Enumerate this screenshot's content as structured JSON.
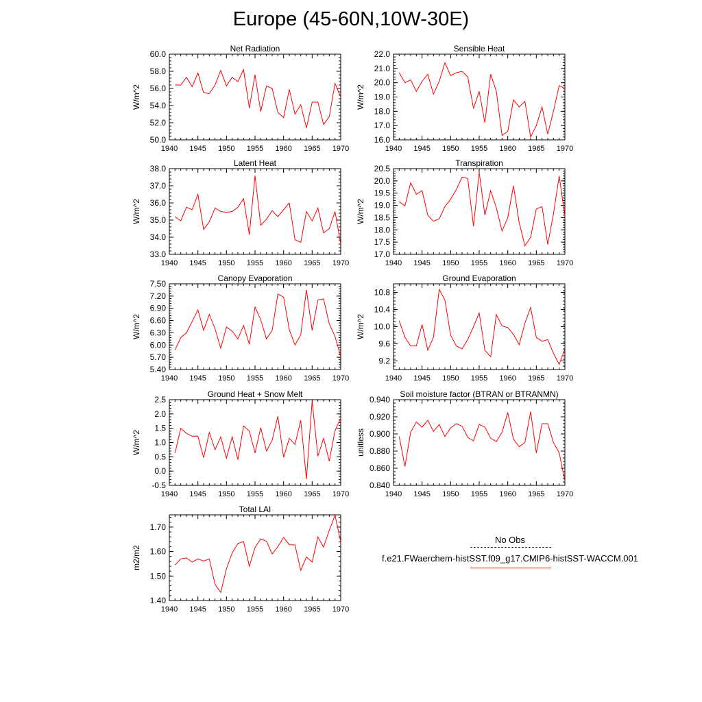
{
  "title": "Europe (45-60N,10W-30E)",
  "legend": {
    "obs_label": "No Obs",
    "model_label": "f.e21.FWaerchem-histSST.f09_g17.CMIP6-histSST-WACCM.001",
    "model_color": "#ff0000",
    "obs_color": "#3333aa"
  },
  "chart_data": [
    {
      "type": "line",
      "title": "Net Radiation",
      "ylabel": "W/m^2",
      "xlim": [
        1940,
        1970
      ],
      "ylim": [
        50,
        60
      ],
      "yticks": [
        "50.0",
        "52.0",
        "54.0",
        "56.0",
        "58.0",
        "60.0"
      ],
      "xticks": [
        "1940",
        "1945",
        "1950",
        "1955",
        "1960",
        "1965",
        "1970"
      ],
      "series": [
        {
          "x": [
            1941,
            1942,
            1943,
            1944,
            1945,
            1946,
            1947,
            1948,
            1949,
            1950,
            1951,
            1952,
            1953,
            1954,
            1955,
            1956,
            1957,
            1958,
            1959,
            1960,
            1961,
            1962,
            1963,
            1964,
            1965,
            1966,
            1967,
            1968,
            1969,
            1970
          ],
          "values": [
            56.4,
            56.4,
            57.3,
            56.2,
            57.8,
            55.5,
            55.4,
            56.4,
            58.1,
            56.3,
            57.3,
            56.8,
            58.2,
            53.7,
            57.6,
            53.3,
            56.3,
            56.0,
            53.2,
            52.6,
            55.9,
            53.0,
            54.1,
            51.4,
            54.4,
            54.4,
            51.8,
            52.7,
            56.6,
            55.0
          ]
        }
      ]
    },
    {
      "type": "line",
      "title": "Sensible Heat",
      "ylabel": "W/m^2",
      "xlim": [
        1940,
        1970
      ],
      "ylim": [
        16,
        22
      ],
      "yticks": [
        "16.0",
        "17.0",
        "18.0",
        "19.0",
        "20.0",
        "21.0",
        "22.0"
      ],
      "xticks": [
        "1940",
        "1945",
        "1950",
        "1955",
        "1960",
        "1965",
        "1970"
      ],
      "series": [
        {
          "x": [
            1941,
            1942,
            1943,
            1944,
            1945,
            1946,
            1947,
            1948,
            1949,
            1950,
            1951,
            1952,
            1953,
            1954,
            1955,
            1956,
            1957,
            1958,
            1959,
            1960,
            1961,
            1962,
            1963,
            1964,
            1965,
            1966,
            1967,
            1968,
            1969,
            1970
          ],
          "values": [
            20.7,
            20.0,
            20.2,
            19.4,
            20.1,
            20.6,
            19.2,
            20.1,
            21.4,
            20.5,
            20.7,
            20.8,
            20.4,
            18.2,
            19.4,
            17.2,
            20.6,
            19.4,
            16.3,
            16.6,
            18.8,
            18.3,
            18.7,
            16.2,
            17.0,
            18.3,
            16.4,
            18.0,
            19.8,
            19.6
          ]
        }
      ]
    },
    {
      "type": "line",
      "title": "Latent Heat",
      "ylabel": "W/m^2",
      "xlim": [
        1940,
        1970
      ],
      "ylim": [
        33,
        38
      ],
      "yticks": [
        "33.0",
        "34.0",
        "35.0",
        "36.0",
        "37.0",
        "38.0"
      ],
      "xticks": [
        "1940",
        "1945",
        "1950",
        "1955",
        "1960",
        "1965",
        "1970"
      ],
      "series": [
        {
          "x": [
            1941,
            1942,
            1943,
            1944,
            1945,
            1946,
            1947,
            1948,
            1949,
            1950,
            1951,
            1952,
            1953,
            1954,
            1955,
            1956,
            1957,
            1958,
            1959,
            1960,
            1961,
            1962,
            1963,
            1964,
            1965,
            1966,
            1967,
            1968,
            1969,
            1970
          ],
          "values": [
            35.2,
            34.95,
            35.75,
            35.6,
            36.5,
            34.45,
            34.9,
            35.7,
            35.5,
            35.45,
            35.5,
            35.75,
            36.25,
            34.15,
            37.6,
            34.7,
            35.05,
            35.55,
            35.2,
            35.6,
            36.0,
            33.85,
            33.7,
            35.5,
            34.95,
            35.7,
            34.25,
            34.5,
            35.5,
            33.6
          ]
        }
      ]
    },
    {
      "type": "line",
      "title": "Transpiration",
      "ylabel": "W/m^2",
      "xlim": [
        1940,
        1970
      ],
      "ylim": [
        17,
        20.5
      ],
      "yticks": [
        "17.0",
        "17.5",
        "18.0",
        "18.5",
        "19.0",
        "19.5",
        "20.0",
        "20.5"
      ],
      "xticks": [
        "1940",
        "1945",
        "1950",
        "1955",
        "1960",
        "1965",
        "1970"
      ],
      "series": [
        {
          "x": [
            1941,
            1942,
            1943,
            1944,
            1945,
            1946,
            1947,
            1948,
            1949,
            1950,
            1951,
            1952,
            1953,
            1954,
            1955,
            1956,
            1957,
            1958,
            1959,
            1960,
            1961,
            1962,
            1963,
            1964,
            1965,
            1966,
            1967,
            1968,
            1969,
            1970
          ],
          "values": [
            19.15,
            18.98,
            19.92,
            19.45,
            19.6,
            18.6,
            18.35,
            18.45,
            18.95,
            19.25,
            19.65,
            20.15,
            20.1,
            18.15,
            20.35,
            18.6,
            19.6,
            18.9,
            17.95,
            18.5,
            19.8,
            18.3,
            17.35,
            17.7,
            18.85,
            18.95,
            17.4,
            18.65,
            20.2,
            18.55
          ]
        }
      ]
    },
    {
      "type": "line",
      "title": "Canopy Evaporation",
      "ylabel": "W/m^2",
      "xlim": [
        1940,
        1970
      ],
      "ylim": [
        5.4,
        7.5
      ],
      "yticks": [
        "5.40",
        "5.70",
        "6.00",
        "6.30",
        "6.60",
        "6.90",
        "7.20",
        "7.50"
      ],
      "xticks": [
        "1940",
        "1945",
        "1950",
        "1955",
        "1960",
        "1965",
        "1970"
      ],
      "series": [
        {
          "x": [
            1941,
            1942,
            1943,
            1944,
            1945,
            1946,
            1947,
            1948,
            1949,
            1950,
            1951,
            1952,
            1953,
            1954,
            1955,
            1956,
            1957,
            1958,
            1959,
            1960,
            1961,
            1962,
            1963,
            1964,
            1965,
            1966,
            1967,
            1968,
            1969,
            1970
          ],
          "values": [
            5.88,
            6.18,
            6.3,
            6.58,
            6.86,
            6.36,
            6.75,
            6.4,
            5.92,
            6.44,
            6.34,
            6.15,
            6.48,
            6.02,
            6.93,
            6.62,
            6.15,
            6.36,
            7.25,
            7.17,
            6.38,
            6.0,
            6.25,
            7.35,
            6.36,
            7.1,
            7.13,
            6.52,
            6.21,
            5.72
          ]
        }
      ]
    },
    {
      "type": "line",
      "title": "Ground Evaporation",
      "ylabel": "W/m^2",
      "xlim": [
        1940,
        1970
      ],
      "ylim": [
        9.0,
        11.0
      ],
      "yticks": [
        "9.2",
        "9.6",
        "10.0",
        "10.4",
        "10.8"
      ],
      "xticks": [
        "1940",
        "1945",
        "1950",
        "1955",
        "1960",
        "1965",
        "1970"
      ],
      "series": [
        {
          "x": [
            1941,
            1942,
            1943,
            1944,
            1945,
            1946,
            1947,
            1948,
            1949,
            1950,
            1951,
            1952,
            1953,
            1954,
            1955,
            1956,
            1957,
            1958,
            1959,
            1960,
            1961,
            1962,
            1963,
            1964,
            1965,
            1966,
            1967,
            1968,
            1969,
            1970
          ],
          "values": [
            10.14,
            9.75,
            9.55,
            9.55,
            10.05,
            9.45,
            9.75,
            10.87,
            10.62,
            9.8,
            9.55,
            9.48,
            9.7,
            10.0,
            10.32,
            9.45,
            9.3,
            10.28,
            10.02,
            9.98,
            9.82,
            9.58,
            10.08,
            10.45,
            9.75,
            9.66,
            9.7,
            9.38,
            9.12,
            9.48
          ]
        }
      ]
    },
    {
      "type": "line",
      "title": "Ground Heat + Snow Melt",
      "ylabel": "W/m^2",
      "xlim": [
        1940,
        1970
      ],
      "ylim": [
        -0.5,
        2.5
      ],
      "yticks": [
        "-0.5",
        "0.0",
        "0.5",
        "1.0",
        "1.5",
        "2.0",
        "2.5"
      ],
      "xticks": [
        "1940",
        "1945",
        "1950",
        "1955",
        "1960",
        "1965",
        "1970"
      ],
      "series": [
        {
          "x": [
            1941,
            1942,
            1943,
            1944,
            1945,
            1946,
            1947,
            1948,
            1949,
            1950,
            1951,
            1952,
            1953,
            1954,
            1955,
            1956,
            1957,
            1958,
            1959,
            1960,
            1961,
            1962,
            1963,
            1964,
            1965,
            1966,
            1967,
            1968,
            1969,
            1970
          ],
          "values": [
            0.63,
            1.5,
            1.32,
            1.22,
            1.22,
            0.47,
            1.35,
            0.75,
            1.2,
            0.45,
            1.2,
            0.4,
            1.58,
            1.4,
            0.63,
            1.52,
            0.7,
            1.08,
            1.92,
            0.48,
            1.15,
            0.93,
            1.78,
            -0.28,
            2.45,
            0.52,
            1.15,
            0.35,
            1.42,
            1.85
          ]
        }
      ]
    },
    {
      "type": "line",
      "title": "Soil moisture factor (BTRAN or BTRANMN)",
      "ylabel": "unitless",
      "xlim": [
        1940,
        1970
      ],
      "ylim": [
        0.84,
        0.94
      ],
      "yticks": [
        "0.840",
        "0.860",
        "0.880",
        "0.900",
        "0.920",
        "0.940"
      ],
      "xticks": [
        "1940",
        "1945",
        "1950",
        "1955",
        "1960",
        "1965",
        "1970"
      ],
      "series": [
        {
          "x": [
            1941,
            1942,
            1943,
            1944,
            1945,
            1946,
            1947,
            1948,
            1949,
            1950,
            1951,
            1952,
            1953,
            1954,
            1955,
            1956,
            1957,
            1958,
            1959,
            1960,
            1961,
            1962,
            1963,
            1964,
            1965,
            1966,
            1967,
            1968,
            1969,
            1970
          ],
          "values": [
            0.897,
            0.862,
            0.902,
            0.914,
            0.908,
            0.916,
            0.903,
            0.911,
            0.897,
            0.907,
            0.912,
            0.909,
            0.896,
            0.892,
            0.911,
            0.908,
            0.895,
            0.891,
            0.902,
            0.925,
            0.894,
            0.885,
            0.89,
            0.926,
            0.878,
            0.912,
            0.912,
            0.89,
            0.878,
            0.845
          ]
        }
      ]
    },
    {
      "type": "line",
      "title": "Total LAI",
      "ylabel": "m2/m2",
      "xlim": [
        1940,
        1970
      ],
      "ylim": [
        1.4,
        1.75
      ],
      "yticks": [
        "1.40",
        "1.50",
        "1.60",
        "1.70"
      ],
      "xticks": [
        "1940",
        "1945",
        "1950",
        "1955",
        "1960",
        "1965",
        "1970"
      ],
      "series": [
        {
          "x": [
            1941,
            1942,
            1943,
            1944,
            1945,
            1946,
            1947,
            1948,
            1949,
            1950,
            1951,
            1952,
            1953,
            1954,
            1955,
            1956,
            1957,
            1958,
            1959,
            1960,
            1961,
            1962,
            1963,
            1964,
            1965,
            1966,
            1967,
            1968,
            1969,
            1970
          ],
          "values": [
            1.545,
            1.57,
            1.574,
            1.557,
            1.57,
            1.561,
            1.57,
            1.466,
            1.433,
            1.53,
            1.595,
            1.633,
            1.641,
            1.54,
            1.617,
            1.652,
            1.642,
            1.59,
            1.62,
            1.658,
            1.628,
            1.627,
            1.523,
            1.578,
            1.557,
            1.66,
            1.618,
            1.687,
            1.748,
            1.64
          ]
        }
      ]
    }
  ]
}
